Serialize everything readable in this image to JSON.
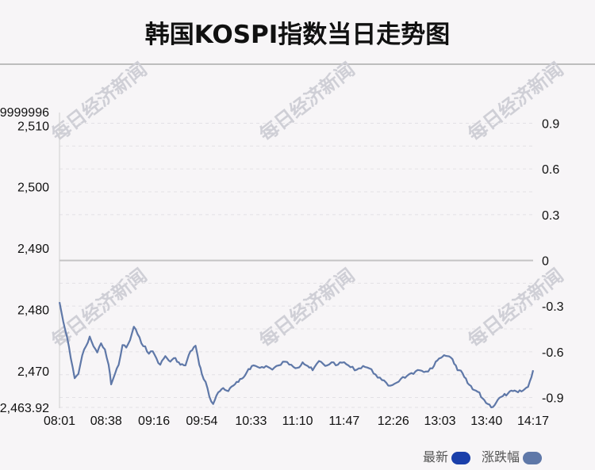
{
  "title": "韩国KOSPI指数当日走势图",
  "watermark": "每日经济新闻",
  "legend": [
    {
      "label": "最新",
      "color": "#1a3faa"
    },
    {
      "label": "涨跌幅",
      "color": "#5f78a8"
    }
  ],
  "chart_data": {
    "type": "line",
    "title": "韩国KOSPI指数当日走势图",
    "x_ticks": [
      "08:01",
      "08:38",
      "09:16",
      "09:54",
      "10:33",
      "11:10",
      "11:47",
      "12:26",
      "13:03",
      "13:40",
      "14:17"
    ],
    "left_axis": {
      "ticks": [
        2510,
        2500,
        2490,
        2480,
        2470
      ],
      "tick_labels": [
        "2,510",
        "2,500",
        "2,490",
        "2,480",
        "2,470"
      ],
      "top_label": "9999996",
      "bottom_label": "2,463.92",
      "range": [
        2463.92,
        2512.1
      ]
    },
    "right_axis": {
      "ticks": [
        0.9,
        0.6,
        0.3,
        0,
        -0.3,
        -0.6,
        -0.9
      ],
      "tick_labels": [
        "0.9",
        "0.6",
        "0.3",
        "0",
        "-0.3",
        "-0.6",
        "-0.9"
      ],
      "range": [
        -0.97,
        0.97
      ]
    },
    "grid": true,
    "previous_close": 2488.0,
    "series": [
      {
        "name": "最新",
        "color": "#5f78a8",
        "points": [
          [
            "08:01",
            2481.2
          ],
          [
            "08:04",
            2478.0
          ],
          [
            "08:07",
            2475.5
          ],
          [
            "08:10",
            2472.0
          ],
          [
            "08:13",
            2468.8
          ],
          [
            "08:16",
            2469.5
          ],
          [
            "08:19",
            2472.5
          ],
          [
            "08:22",
            2474.0
          ],
          [
            "08:25",
            2475.6
          ],
          [
            "08:28",
            2474.0
          ],
          [
            "08:31",
            2473.0
          ],
          [
            "08:34",
            2474.5
          ],
          [
            "08:37",
            2473.5
          ],
          [
            "08:40",
            2471.0
          ],
          [
            "08:42",
            2467.8
          ],
          [
            "08:45",
            2469.5
          ],
          [
            "08:48",
            2471.0
          ],
          [
            "08:51",
            2474.2
          ],
          [
            "08:54",
            2473.8
          ],
          [
            "08:57",
            2475.0
          ],
          [
            "09:00",
            2477.2
          ],
          [
            "09:03",
            2476.0
          ],
          [
            "09:06",
            2474.5
          ],
          [
            "09:09",
            2474.0
          ],
          [
            "09:12",
            2472.8
          ],
          [
            "09:15",
            2473.2
          ],
          [
            "09:18",
            2472.0
          ],
          [
            "09:21",
            2471.0
          ],
          [
            "09:25",
            2472.4
          ],
          [
            "09:29",
            2471.5
          ],
          [
            "09:33",
            2472.1
          ],
          [
            "09:37",
            2471.0
          ],
          [
            "09:41",
            2470.9
          ],
          [
            "09:45",
            2473.2
          ],
          [
            "09:49",
            2474.1
          ],
          [
            "09:52",
            2471.0
          ],
          [
            "09:54",
            2469.5
          ],
          [
            "09:57",
            2468.2
          ],
          [
            "10:00",
            2465.8
          ],
          [
            "10:03",
            2464.6
          ],
          [
            "10:07",
            2466.5
          ],
          [
            "10:11",
            2467.2
          ],
          [
            "10:15",
            2466.7
          ],
          [
            "10:19",
            2467.6
          ],
          [
            "10:23",
            2468.2
          ],
          [
            "10:27",
            2468.9
          ],
          [
            "10:31",
            2470.3
          ],
          [
            "10:35",
            2470.9
          ],
          [
            "10:40",
            2470.5
          ],
          [
            "10:45",
            2470.8
          ],
          [
            "10:50",
            2470.2
          ],
          [
            "10:55",
            2470.9
          ],
          [
            "11:00",
            2471.5
          ],
          [
            "11:05",
            2471.0
          ],
          [
            "11:10",
            2470.5
          ],
          [
            "11:14",
            2471.4
          ],
          [
            "11:18",
            2470.8
          ],
          [
            "11:22",
            2470.1
          ],
          [
            "11:27",
            2471.6
          ],
          [
            "11:32",
            2470.8
          ],
          [
            "11:37",
            2471.4
          ],
          [
            "11:42",
            2471.0
          ],
          [
            "11:47",
            2471.4
          ],
          [
            "11:52",
            2470.6
          ],
          [
            "11:57",
            2470.2
          ],
          [
            "12:02",
            2470.8
          ],
          [
            "12:07",
            2470.4
          ],
          [
            "12:12",
            2469.4
          ],
          [
            "12:17",
            2468.5
          ],
          [
            "12:22",
            2467.6
          ],
          [
            "12:27",
            2467.9
          ],
          [
            "12:32",
            2468.7
          ],
          [
            "12:37",
            2469.2
          ],
          [
            "12:42",
            2469.5
          ],
          [
            "12:47",
            2470.1
          ],
          [
            "12:52",
            2469.9
          ],
          [
            "12:57",
            2470.4
          ],
          [
            "13:01",
            2471.7
          ],
          [
            "13:05",
            2472.3
          ],
          [
            "13:09",
            2472.4
          ],
          [
            "13:13",
            2471.9
          ],
          [
            "13:17",
            2470.1
          ],
          [
            "13:21",
            2469.6
          ],
          [
            "13:25",
            2468.0
          ],
          [
            "13:29",
            2467.0
          ],
          [
            "13:33",
            2466.6
          ],
          [
            "13:37",
            2465.5
          ],
          [
            "13:41",
            2464.6
          ],
          [
            "13:45",
            2464.1
          ],
          [
            "13:49",
            2465.3
          ],
          [
            "13:53",
            2465.9
          ],
          [
            "13:57",
            2466.3
          ],
          [
            "14:01",
            2466.7
          ],
          [
            "14:05",
            2466.5
          ],
          [
            "14:09",
            2466.8
          ],
          [
            "14:13",
            2467.4
          ],
          [
            "14:17",
            2470.1
          ]
        ]
      }
    ]
  }
}
